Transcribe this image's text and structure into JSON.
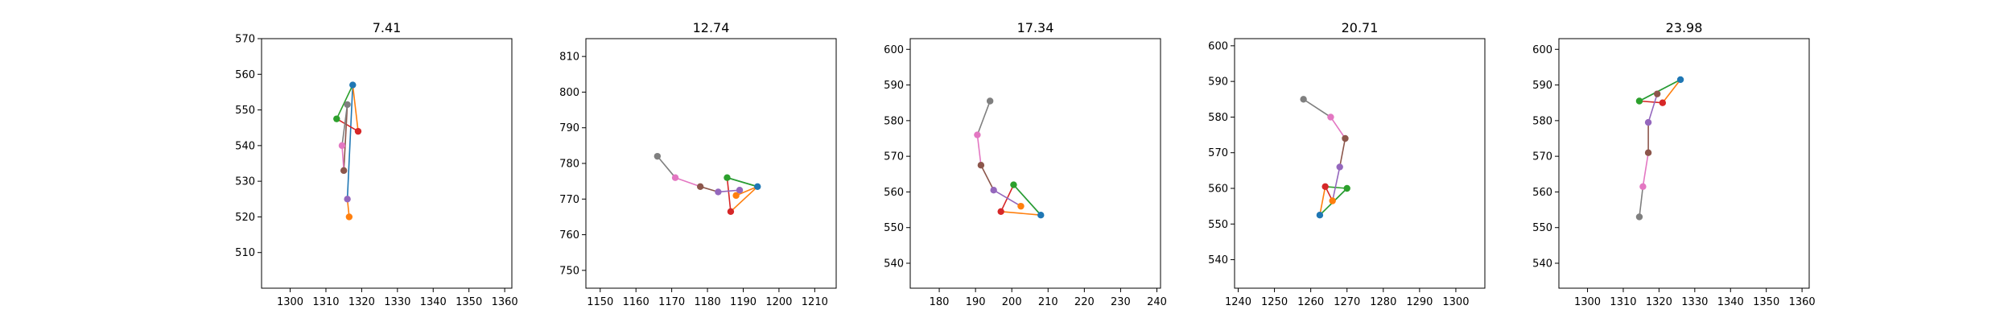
{
  "chart_data": [
    {
      "type": "line",
      "title": "7.41",
      "xlim": [
        1292,
        1362
      ],
      "ylim": [
        500,
        570
      ],
      "xticks": [
        1300,
        1310,
        1320,
        1330,
        1340,
        1350,
        1360
      ],
      "yticks": [
        510,
        520,
        530,
        540,
        550,
        560,
        570
      ],
      "segments": [
        {
          "color": "#1f77b4",
          "points": [
            [
              1317.5,
              557
            ],
            [
              1316,
              525
            ]
          ]
        },
        {
          "color": "#ff7f0e",
          "points": [
            [
              1317.5,
              557
            ],
            [
              1319,
              544
            ]
          ]
        },
        {
          "color": "#ff7f0e",
          "points": [
            [
              1316,
              525
            ],
            [
              1316.5,
              520
            ]
          ]
        },
        {
          "color": "#2ca02c",
          "points": [
            [
              1317.5,
              557
            ],
            [
              1313,
              547.5
            ]
          ]
        },
        {
          "color": "#d62728",
          "points": [
            [
              1313,
              547.5
            ],
            [
              1319,
              544
            ]
          ]
        },
        {
          "color": "#8c564b",
          "points": [
            [
              1316,
              551.5
            ],
            [
              1315,
              533
            ]
          ]
        },
        {
          "color": "#e377c2",
          "points": [
            [
              1315,
              533
            ],
            [
              1314.5,
              540
            ]
          ]
        },
        {
          "color": "#7f7f7f",
          "points": [
            [
              1316,
              551.5
            ],
            [
              1314.5,
              540
            ]
          ]
        }
      ],
      "points": [
        {
          "x": 1317.5,
          "y": 557,
          "color": "#1f77b4"
        },
        {
          "x": 1316,
          "y": 525,
          "color": "#9467bd"
        },
        {
          "x": 1316.5,
          "y": 520,
          "color": "#ff7f0e"
        },
        {
          "x": 1313,
          "y": 547.5,
          "color": "#2ca02c"
        },
        {
          "x": 1319,
          "y": 544,
          "color": "#d62728"
        },
        {
          "x": 1316,
          "y": 551.5,
          "color": "#7f7f7f"
        },
        {
          "x": 1315,
          "y": 533,
          "color": "#8c564b"
        },
        {
          "x": 1314.5,
          "y": 540,
          "color": "#e377c2"
        }
      ]
    },
    {
      "type": "line",
      "title": "12.74",
      "xlim": [
        1146,
        1216
      ],
      "ylim": [
        745,
        815
      ],
      "xticks": [
        1150,
        1160,
        1170,
        1180,
        1190,
        1200,
        1210
      ],
      "yticks": [
        750,
        760,
        770,
        780,
        790,
        800,
        810
      ],
      "segments": [
        {
          "color": "#1f77b4",
          "points": [
            [
              1194,
              773.5
            ],
            [
              1185.5,
              776
            ]
          ]
        },
        {
          "color": "#ff7f0e",
          "points": [
            [
              1194,
              773.5
            ],
            [
              1186.5,
              766.5
            ]
          ]
        },
        {
          "color": "#ff7f0e",
          "points": [
            [
              1194,
              773.5
            ],
            [
              1188,
              771
            ]
          ]
        },
        {
          "color": "#2ca02c",
          "points": [
            [
              1194,
              773.5
            ],
            [
              1185.5,
              776
            ]
          ]
        },
        {
          "color": "#d62728",
          "points": [
            [
              1185.5,
              776
            ],
            [
              1186.5,
              766.5
            ]
          ]
        },
        {
          "color": "#9467bd",
          "points": [
            [
              1183,
              772
            ],
            [
              1189,
              772.5
            ]
          ]
        },
        {
          "color": "#8c564b",
          "points": [
            [
              1183,
              772
            ],
            [
              1178,
              773.5
            ]
          ]
        },
        {
          "color": "#e377c2",
          "points": [
            [
              1178,
              773.5
            ],
            [
              1171,
              776
            ]
          ]
        },
        {
          "color": "#7f7f7f",
          "points": [
            [
              1171,
              776
            ],
            [
              1166,
              782
            ]
          ]
        }
      ],
      "points": [
        {
          "x": 1194,
          "y": 773.5,
          "color": "#1f77b4"
        },
        {
          "x": 1185.5,
          "y": 776,
          "color": "#2ca02c"
        },
        {
          "x": 1186.5,
          "y": 766.5,
          "color": "#d62728"
        },
        {
          "x": 1188,
          "y": 771,
          "color": "#ff7f0e"
        },
        {
          "x": 1189,
          "y": 772.5,
          "color": "#9467bd"
        },
        {
          "x": 1183,
          "y": 772,
          "color": "#9467bd"
        },
        {
          "x": 1178,
          "y": 773.5,
          "color": "#8c564b"
        },
        {
          "x": 1171,
          "y": 776,
          "color": "#e377c2"
        },
        {
          "x": 1166,
          "y": 782,
          "color": "#7f7f7f"
        }
      ]
    },
    {
      "type": "line",
      "title": "17.34",
      "xlim": [
        172,
        241
      ],
      "ylim": [
        533,
        603
      ],
      "xticks": [
        180,
        190,
        200,
        210,
        220,
        230,
        240
      ],
      "yticks": [
        540,
        550,
        560,
        570,
        580,
        590,
        600
      ],
      "segments": [
        {
          "color": "#1f77b4",
          "points": [
            [
              208,
              553.5
            ],
            [
              200.5,
              562
            ]
          ]
        },
        {
          "color": "#ff7f0e",
          "points": [
            [
              208,
              553.5
            ],
            [
              197,
              554.5
            ]
          ]
        },
        {
          "color": "#2ca02c",
          "points": [
            [
              208,
              553.5
            ],
            [
              200.5,
              562
            ]
          ]
        },
        {
          "color": "#d62728",
          "points": [
            [
              200.5,
              562
            ],
            [
              197,
              554.5
            ]
          ]
        },
        {
          "color": "#9467bd",
          "points": [
            [
              195,
              560.5
            ],
            [
              202.5,
              556
            ]
          ]
        },
        {
          "color": "#8c564b",
          "points": [
            [
              195,
              560.5
            ],
            [
              191.5,
              567.5
            ]
          ]
        },
        {
          "color": "#e377c2",
          "points": [
            [
              191.5,
              567.5
            ],
            [
              190.5,
              576
            ]
          ]
        },
        {
          "color": "#7f7f7f",
          "points": [
            [
              190.5,
              576
            ],
            [
              194,
              585.5
            ]
          ]
        }
      ],
      "points": [
        {
          "x": 208,
          "y": 553.5,
          "color": "#1f77b4"
        },
        {
          "x": 200.5,
          "y": 562,
          "color": "#2ca02c"
        },
        {
          "x": 197,
          "y": 554.5,
          "color": "#d62728"
        },
        {
          "x": 202.5,
          "y": 556,
          "color": "#ff7f0e"
        },
        {
          "x": 195,
          "y": 560.5,
          "color": "#9467bd"
        },
        {
          "x": 191.5,
          "y": 567.5,
          "color": "#8c564b"
        },
        {
          "x": 190.5,
          "y": 576,
          "color": "#e377c2"
        },
        {
          "x": 194,
          "y": 585.5,
          "color": "#7f7f7f"
        }
      ]
    },
    {
      "type": "line",
      "title": "20.71",
      "xlim": [
        1239,
        1308
      ],
      "ylim": [
        532,
        602
      ],
      "xticks": [
        1240,
        1250,
        1260,
        1270,
        1280,
        1290,
        1300
      ],
      "yticks": [
        540,
        550,
        560,
        570,
        580,
        590,
        600
      ],
      "segments": [
        {
          "color": "#1f77b4",
          "points": [
            [
              1262.5,
              552.5
            ],
            [
              1270,
              560
            ]
          ]
        },
        {
          "color": "#ff7f0e",
          "points": [
            [
              1262.5,
              552.5
            ],
            [
              1264,
              560.5
            ]
          ]
        },
        {
          "color": "#2ca02c",
          "points": [
            [
              1262.5,
              552.5
            ],
            [
              1270,
              560
            ]
          ]
        },
        {
          "color": "#2ca02c",
          "points": [
            [
              1264,
              560.5
            ],
            [
              1270,
              560
            ]
          ]
        },
        {
          "color": "#d62728",
          "points": [
            [
              1264,
              560.5
            ],
            [
              1266,
              556.5
            ]
          ]
        },
        {
          "color": "#9467bd",
          "points": [
            [
              1266,
              556.5
            ],
            [
              1268,
              566
            ]
          ]
        },
        {
          "color": "#8c564b",
          "points": [
            [
              1268,
              566
            ],
            [
              1269.5,
              574
            ]
          ]
        },
        {
          "color": "#e377c2",
          "points": [
            [
              1269.5,
              574
            ],
            [
              1265.5,
              580
            ]
          ]
        },
        {
          "color": "#7f7f7f",
          "points": [
            [
              1265.5,
              580
            ],
            [
              1258,
              585
            ]
          ]
        }
      ],
      "points": [
        {
          "x": 1262.5,
          "y": 552.5,
          "color": "#1f77b4"
        },
        {
          "x": 1270,
          "y": 560,
          "color": "#2ca02c"
        },
        {
          "x": 1264,
          "y": 560.5,
          "color": "#d62728"
        },
        {
          "x": 1266,
          "y": 556.5,
          "color": "#ff7f0e"
        },
        {
          "x": 1268,
          "y": 566,
          "color": "#9467bd"
        },
        {
          "x": 1269.5,
          "y": 574,
          "color": "#8c564b"
        },
        {
          "x": 1265.5,
          "y": 580,
          "color": "#e377c2"
        },
        {
          "x": 1258,
          "y": 585,
          "color": "#7f7f7f"
        }
      ]
    },
    {
      "type": "line",
      "title": "23.98",
      "xlim": [
        1292,
        1362
      ],
      "ylim": [
        533,
        603
      ],
      "xticks": [
        1300,
        1310,
        1320,
        1330,
        1340,
        1350,
        1360
      ],
      "yticks": [
        540,
        550,
        560,
        570,
        580,
        590,
        600
      ],
      "segments": [
        {
          "color": "#1f77b4",
          "points": [
            [
              1326,
              591.5
            ],
            [
              1314.5,
              585.5
            ]
          ]
        },
        {
          "color": "#ff7f0e",
          "points": [
            [
              1326,
              591.5
            ],
            [
              1321,
              585
            ]
          ]
        },
        {
          "color": "#2ca02c",
          "points": [
            [
              1326,
              591.5
            ],
            [
              1314.5,
              585.5
            ]
          ]
        },
        {
          "color": "#d62728",
          "points": [
            [
              1314.5,
              585.5
            ],
            [
              1321,
              585
            ]
          ]
        },
        {
          "color": "#9467bd",
          "points": [
            [
              1319.5,
              587.5
            ],
            [
              1317,
              579.5
            ]
          ]
        },
        {
          "color": "#8c564b",
          "points": [
            [
              1317,
              579.5
            ],
            [
              1317,
              571
            ]
          ]
        },
        {
          "color": "#e377c2",
          "points": [
            [
              1317,
              571
            ],
            [
              1315.5,
              561.5
            ]
          ]
        },
        {
          "color": "#7f7f7f",
          "points": [
            [
              1315.5,
              561.5
            ],
            [
              1314.5,
              553
            ]
          ]
        }
      ],
      "points": [
        {
          "x": 1326,
          "y": 591.5,
          "color": "#1f77b4"
        },
        {
          "x": 1314.5,
          "y": 585.5,
          "color": "#2ca02c"
        },
        {
          "x": 1321,
          "y": 585,
          "color": "#d62728"
        },
        {
          "x": 1319.5,
          "y": 587.5,
          "color": "#8c564b"
        },
        {
          "x": 1317,
          "y": 579.5,
          "color": "#9467bd"
        },
        {
          "x": 1317,
          "y": 571,
          "color": "#8c564b"
        },
        {
          "x": 1315.5,
          "y": 561.5,
          "color": "#e377c2"
        },
        {
          "x": 1314.5,
          "y": 553,
          "color": "#7f7f7f"
        }
      ]
    }
  ]
}
